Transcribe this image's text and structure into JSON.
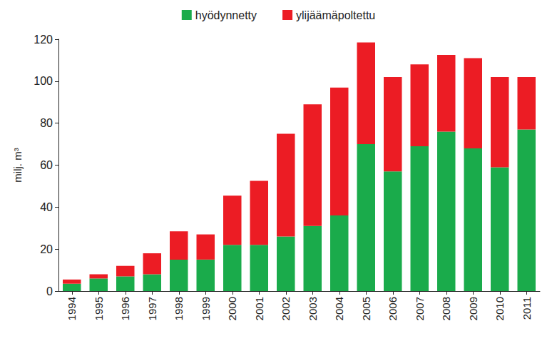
{
  "chart_data": {
    "type": "bar",
    "stacked": true,
    "grid": false,
    "legend": "top",
    "ylabel": "milj. m³",
    "categories": [
      "1994",
      "1995",
      "1996",
      "1997",
      "1998",
      "1999",
      "2000",
      "2001",
      "2002",
      "2003",
      "2004",
      "2005",
      "2006",
      "2007",
      "2008",
      "2009",
      "2010",
      "2011"
    ],
    "series": [
      {
        "name": "hyödynnetty",
        "color": "#1aab4b",
        "values": [
          3.5,
          6,
          7,
          8,
          15,
          15,
          22,
          22,
          26,
          31,
          36,
          70,
          57,
          69,
          76,
          68,
          59,
          77
        ]
      },
      {
        "name": "ylijäämäpoltettu",
        "color": "#ec1c24",
        "values": [
          2,
          2,
          5,
          10,
          13.5,
          12,
          23.5,
          30.5,
          49,
          58,
          61,
          48.5,
          45,
          39,
          36.5,
          43,
          43,
          25
        ]
      }
    ],
    "ylim": [
      0,
      120
    ],
    "yticks": [
      0,
      20,
      40,
      60,
      80,
      100,
      120
    ]
  }
}
